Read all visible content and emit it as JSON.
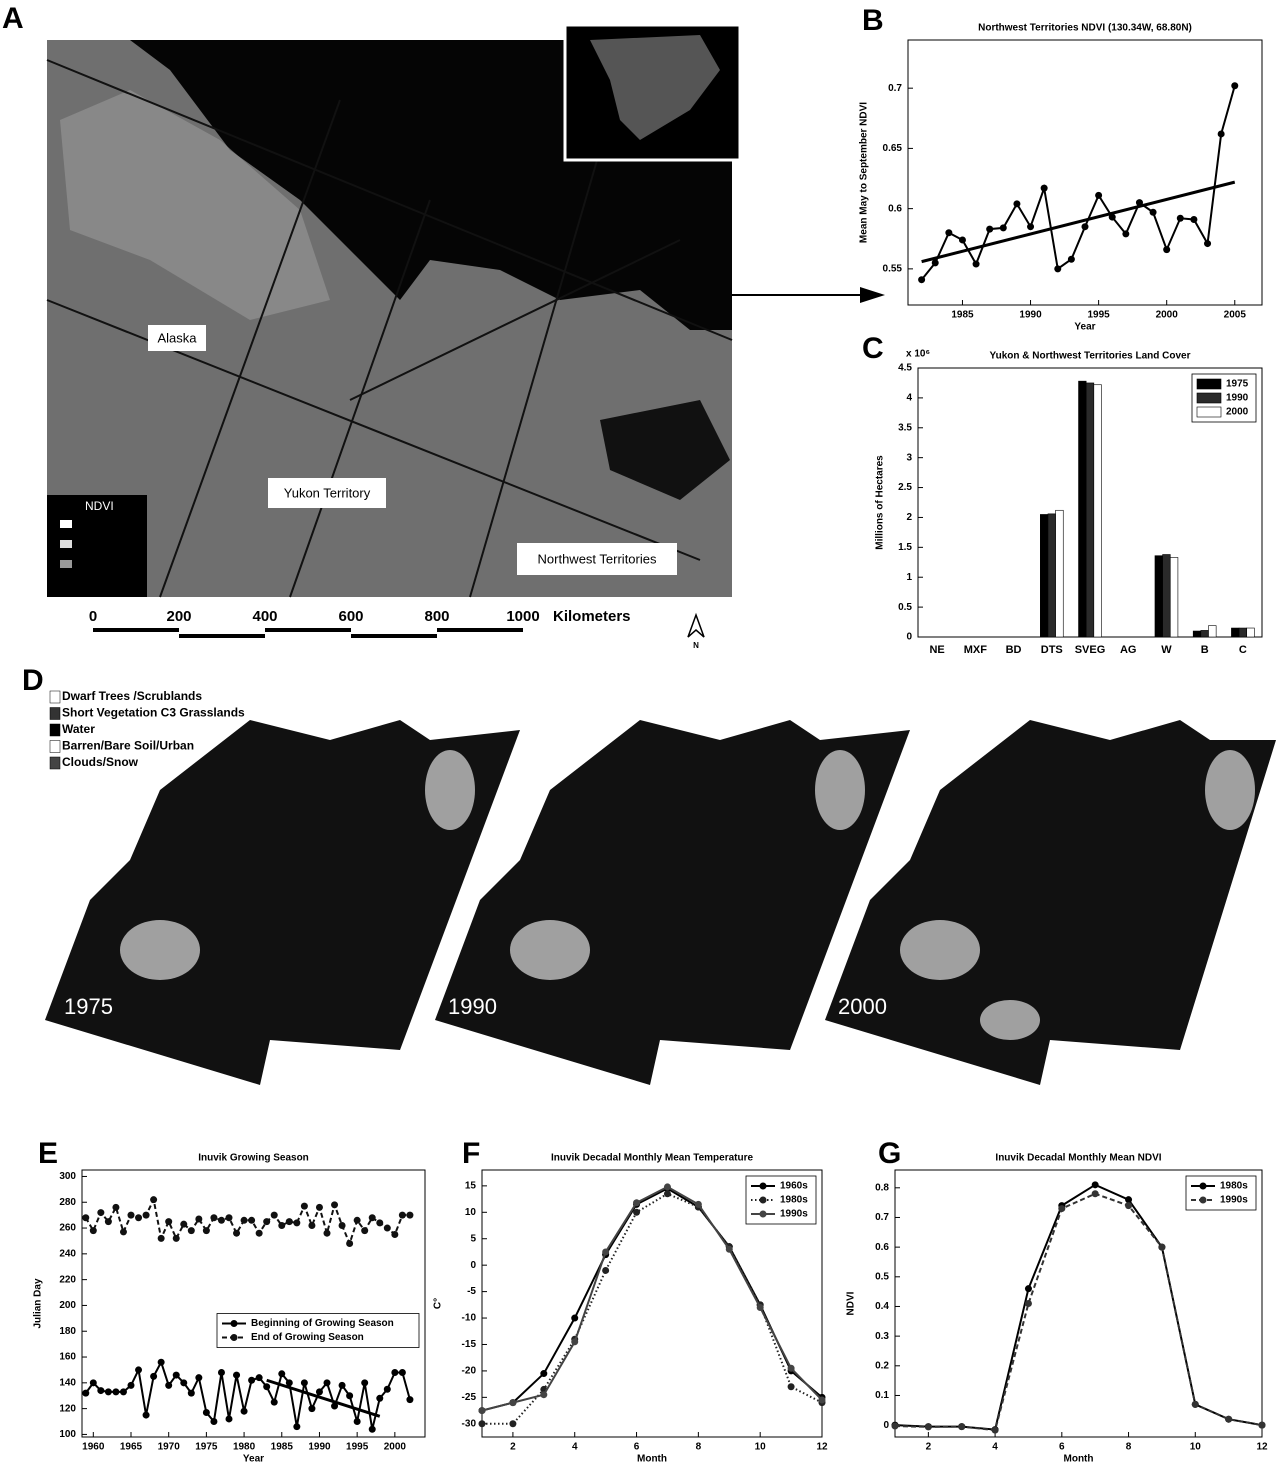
{
  "panel_labels": [
    "A",
    "B",
    "C",
    "D",
    "E",
    "F",
    "G"
  ],
  "map": {
    "labels": [
      "Alaska",
      "Yukon Territory",
      "Northwest Territories"
    ],
    "legend_title": "NDVI",
    "scale_ticks": [
      0,
      200,
      400,
      600,
      800,
      1000
    ],
    "scale_unit": "Kilometers",
    "north": "N"
  },
  "landcover": {
    "legend": [
      "Dwarf Trees /Scrublands",
      "Short Vegetation C3 Grasslands",
      "Water",
      "Barren/Bare Soil/Urban",
      "Clouds/Snow"
    ],
    "years": [
      "1975",
      "1990",
      "2000"
    ]
  },
  "chart_data": [
    {
      "type": "line",
      "title": "Northwest Territories NDVI (130.34W, 68.80N)",
      "xlabel": "Year",
      "ylabel": "Mean May to September NDVI",
      "x": [
        1982,
        1983,
        1984,
        1985,
        1986,
        1987,
        1988,
        1989,
        1990,
        1991,
        1992,
        1993,
        1994,
        1995,
        1996,
        1997,
        1998,
        1999,
        2000,
        2001,
        2002,
        2003,
        2004,
        2005
      ],
      "series": [
        {
          "color": "#000000",
          "linestyle": "solid",
          "values": [
            0.541,
            0.555,
            0.58,
            0.574,
            0.554,
            0.583,
            0.584,
            0.604,
            0.585,
            0.617,
            0.55,
            0.558,
            0.585,
            0.611,
            0.593,
            0.579,
            0.605,
            0.597,
            0.566,
            0.592,
            0.591,
            0.571,
            0.662,
            0.702
          ]
        }
      ],
      "trend": {
        "x": [
          1982,
          2005
        ],
        "values": [
          0.556,
          0.622
        ]
      },
      "xlim": [
        1981,
        2007
      ],
      "xticks": [
        1985,
        1990,
        1995,
        2000,
        2005
      ],
      "ylim": [
        0.52,
        0.74
      ],
      "yticks": [
        0.55,
        0.6,
        0.65,
        0.7
      ]
    },
    {
      "type": "bar",
      "title": "Yukon & Northwest Territories Land Cover",
      "multiplier": "x 10⁶",
      "ylabel": "Millions of Hectares",
      "categories": [
        "NE",
        "MXF",
        "BD",
        "DTS",
        "SVEG",
        "AG",
        "W",
        "B",
        "C"
      ],
      "series": [
        {
          "name": "1975",
          "color": "#000000",
          "values": [
            0,
            0,
            0,
            2.05,
            4.28,
            0,
            1.36,
            0.1,
            0.15
          ]
        },
        {
          "name": "1990",
          "color": "#2a2a2a",
          "values": [
            0,
            0,
            0,
            2.06,
            4.25,
            0,
            1.38,
            0.11,
            0.15
          ]
        },
        {
          "name": "2000",
          "color": "#ffffff",
          "values": [
            0,
            0,
            0,
            2.12,
            4.22,
            0,
            1.33,
            0.19,
            0.15
          ]
        }
      ],
      "ylim": [
        0,
        4.5
      ],
      "yticks": [
        0,
        0.5,
        1,
        1.5,
        2,
        2.5,
        3,
        3.5,
        4,
        4.5
      ],
      "legend": "upper right"
    },
    {
      "type": "line",
      "title": "Inuvik Growing Season",
      "xlabel": "Year",
      "ylabel": "Julian Day",
      "x": [
        1959,
        1960,
        1961,
        1962,
        1963,
        1964,
        1965,
        1966,
        1967,
        1968,
        1969,
        1970,
        1971,
        1972,
        1973,
        1974,
        1975,
        1976,
        1977,
        1978,
        1979,
        1980,
        1981,
        1982,
        1983,
        1984,
        1985,
        1986,
        1987,
        1988,
        1989,
        1990,
        1991,
        1992,
        1993,
        1994,
        1995,
        1996,
        1997,
        1998,
        1999,
        2000,
        2001,
        2002
      ],
      "series": [
        {
          "name": "Beginning of Growing Season",
          "color": "#000000",
          "linestyle": "solid",
          "values": [
            132,
            140,
            134,
            133,
            133,
            133,
            138,
            150,
            115,
            145,
            156,
            138,
            146,
            140,
            132,
            144,
            117,
            110,
            148,
            112,
            146,
            118,
            142,
            144,
            137,
            125,
            147,
            140,
            106,
            140,
            120,
            133,
            140,
            122,
            138,
            130,
            110,
            140,
            104,
            128,
            135,
            148,
            148,
            127
          ]
        },
        {
          "name": "End of Growing Season",
          "color": "#111111",
          "linestyle": "dashed",
          "values": [
            268,
            258,
            272,
            265,
            276,
            257,
            270,
            268,
            270,
            282,
            252,
            265,
            252,
            263,
            258,
            267,
            258,
            268,
            266,
            268,
            256,
            266,
            266,
            256,
            265,
            270,
            262,
            265,
            264,
            277,
            262,
            276,
            256,
            278,
            262,
            248,
            266,
            258,
            268,
            264,
            260,
            255,
            270,
            270
          ]
        }
      ],
      "trend": {
        "x": [
          1983,
          1998
        ],
        "values": [
          142,
          114
        ]
      },
      "xlim": [
        1958.5,
        2004
      ],
      "xticks": [
        1960,
        1965,
        1970,
        1975,
        1980,
        1985,
        1990,
        1995,
        2000
      ],
      "ylim": [
        98,
        305
      ],
      "yticks": [
        100,
        120,
        140,
        160,
        180,
        200,
        220,
        240,
        260,
        280,
        300
      ],
      "legend": "center right"
    },
    {
      "type": "line",
      "title": "Inuvik Decadal Monthly Mean Temperature",
      "xlabel": "Month",
      "ylabel": "C°",
      "x": [
        1,
        2,
        3,
        4,
        5,
        6,
        7,
        8,
        9,
        10,
        11,
        12
      ],
      "series": [
        {
          "name": "1960s",
          "color": "#000000",
          "linestyle": "solid",
          "values": [
            -27.5,
            -26,
            -20.5,
            -10,
            2,
            11.5,
            14.5,
            11,
            3.5,
            -7.5,
            -20,
            -25
          ]
        },
        {
          "name": "1980s",
          "color": "#222222",
          "linestyle": "dotted",
          "values": [
            -30,
            -30,
            -23.5,
            -14,
            -1,
            10,
            13.5,
            11,
            3.5,
            -7.5,
            -23,
            -26
          ]
        },
        {
          "name": "1990s",
          "color": "#444444",
          "linestyle": "solid",
          "values": [
            -27.5,
            -26,
            -24.5,
            -14.5,
            2.5,
            11.8,
            14.8,
            11.5,
            3,
            -8,
            -19.5,
            -25.5
          ]
        }
      ],
      "xlim": [
        1,
        12
      ],
      "xticks": [
        2,
        4,
        6,
        8,
        10,
        12
      ],
      "ylim": [
        -32.5,
        18
      ],
      "yticks": [
        -30,
        -25,
        -20,
        -15,
        -10,
        -5,
        0,
        5,
        10,
        15
      ],
      "legend": "upper right"
    },
    {
      "type": "line",
      "title": "Inuvik Decadal Monthly Mean NDVI",
      "xlabel": "Month",
      "ylabel": "NDVI",
      "x": [
        1,
        2,
        3,
        4,
        5,
        6,
        7,
        8,
        9,
        10,
        11,
        12
      ],
      "series": [
        {
          "name": "1980s",
          "color": "#000000",
          "linestyle": "solid",
          "values": [
            0,
            -0.005,
            -0.005,
            -0.015,
            0.46,
            0.74,
            0.81,
            0.76,
            0.6,
            0.07,
            0.02,
            0
          ]
        },
        {
          "name": "1990s",
          "color": "#333333",
          "linestyle": "dashed",
          "values": [
            -0.003,
            -0.006,
            -0.005,
            -0.017,
            0.41,
            0.73,
            0.78,
            0.74,
            0.6,
            0.07,
            0.02,
            0
          ]
        }
      ],
      "xlim": [
        1,
        12
      ],
      "xticks": [
        2,
        4,
        6,
        8,
        10,
        12
      ],
      "ylim": [
        -0.04,
        0.86
      ],
      "yticks": [
        0,
        0.1,
        0.2,
        0.3,
        0.4,
        0.5,
        0.6,
        0.7,
        0.8
      ],
      "legend": "upper right"
    }
  ]
}
